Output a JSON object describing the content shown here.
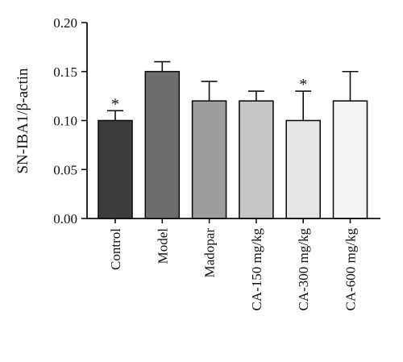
{
  "chart_data": {
    "type": "bar",
    "title": "",
    "xlabel": "",
    "ylabel": "SN-IBA1/β-actin",
    "ylim": [
      0,
      0.2
    ],
    "yticks": [
      "0.00",
      "0.05",
      "0.10",
      "0.15",
      "0.20"
    ],
    "grid": false,
    "legend": "none",
    "categories": [
      "Control",
      "Model",
      "Madopar",
      "CA-150 mg/kg",
      "CA-300 mg/kg",
      "CA-600 mg/kg"
    ],
    "values": [
      0.1,
      0.15,
      0.12,
      0.12,
      0.1,
      0.12
    ],
    "errors": [
      0.01,
      0.01,
      0.02,
      0.01,
      0.03,
      0.03
    ],
    "significance": [
      "*",
      "",
      "",
      "",
      "*",
      ""
    ],
    "bar_colors": [
      "#3c3c3c",
      "#6e6e6e",
      "#9d9d9d",
      "#c6c6c6",
      "#e6e6e6",
      "#f4f4f4"
    ]
  }
}
